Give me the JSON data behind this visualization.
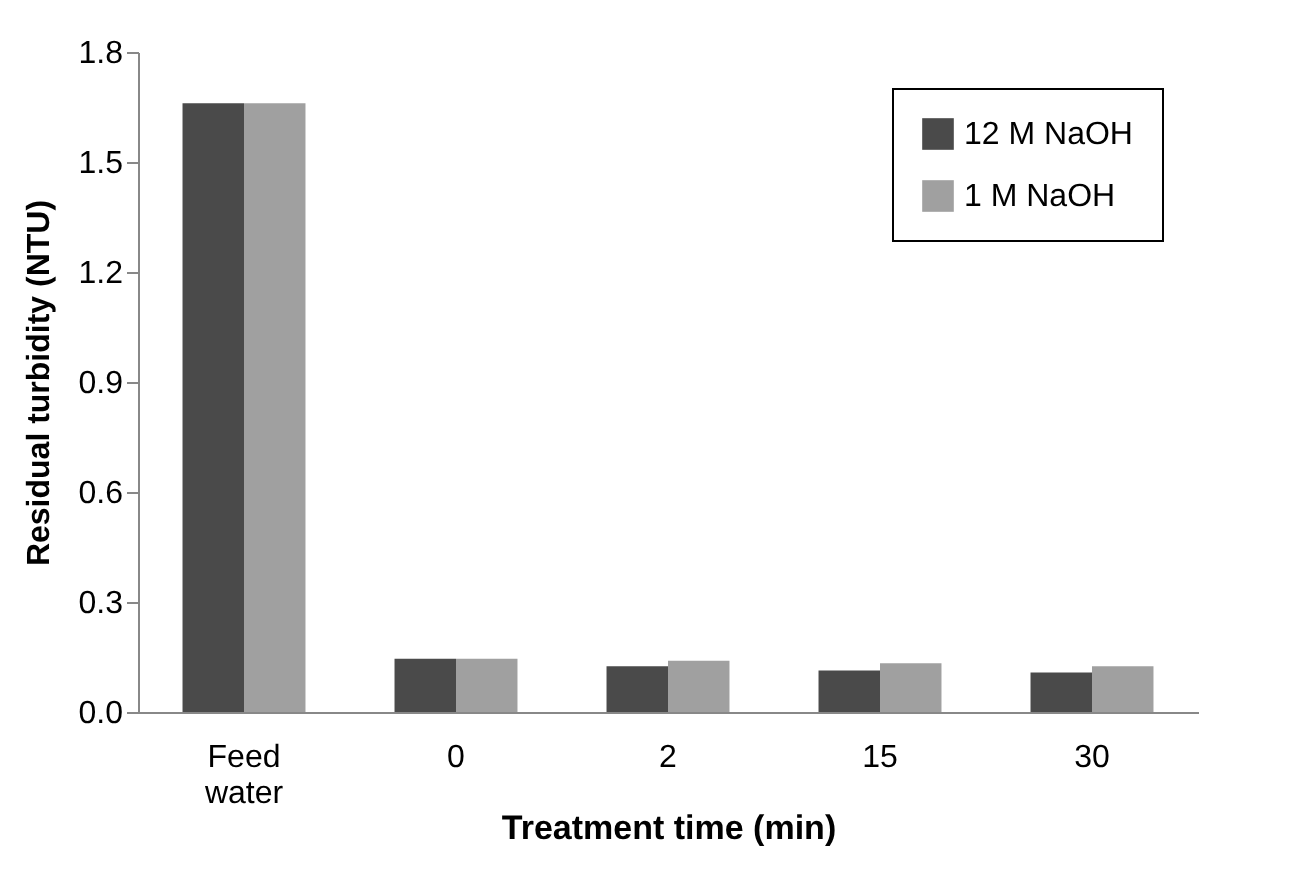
{
  "chart_data": {
    "type": "bar",
    "xlabel": "Treatment time (min)",
    "ylabel": "Residual turbidity (NTU)",
    "categories": [
      "Feed water",
      "0",
      "2",
      "15",
      "30"
    ],
    "series": [
      {
        "name": "12 M NaOH",
        "color": "#4a4a4a",
        "values": [
          1.66,
          0.145,
          0.125,
          0.113,
          0.108
        ]
      },
      {
        "name": "1 M NaOH",
        "color": "#a0a0a0",
        "values": [
          1.66,
          0.145,
          0.14,
          0.133,
          0.125
        ]
      }
    ],
    "ylim": [
      0,
      1.8
    ],
    "yticks": [
      {
        "value": 0,
        "label": "0.0"
      },
      {
        "value": 0.3,
        "label": "0.3"
      },
      {
        "value": 0.6,
        "label": "0.6"
      },
      {
        "value": 0.9,
        "label": "0.9"
      },
      {
        "value": 1.2,
        "label": "1.2"
      },
      {
        "value": 1.5,
        "label": "1.5"
      },
      {
        "value": 1.8,
        "label": "1.8"
      }
    ],
    "grid": false,
    "legend": "top right"
  }
}
